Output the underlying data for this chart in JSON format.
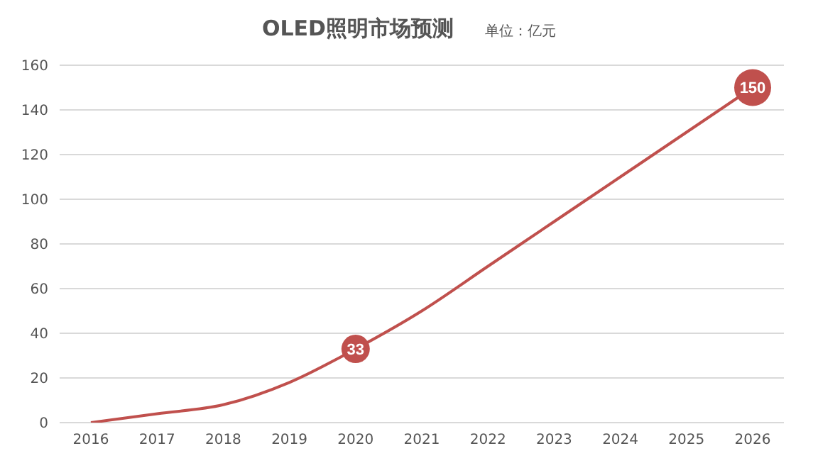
{
  "chart_data": {
    "type": "line",
    "title": "OLED照明市场预测",
    "subtitle": "单位：亿元",
    "categories": [
      "2016",
      "2017",
      "2018",
      "2019",
      "2020",
      "2021",
      "2022",
      "2023",
      "2024",
      "2025",
      "2026"
    ],
    "series": [
      {
        "color": "#c0504d",
        "values": [
          0,
          4,
          8,
          18,
          33,
          50,
          70,
          90,
          110,
          130,
          150
        ],
        "value_labels": [
          null,
          null,
          null,
          null,
          "33",
          null,
          null,
          null,
          null,
          null,
          "150"
        ]
      }
    ],
    "ylim": [
      0,
      160
    ],
    "yticks": [
      0,
      20,
      40,
      60,
      80,
      100,
      120,
      140,
      160
    ],
    "grid": "y",
    "marker": "none",
    "line_style": "solid"
  }
}
